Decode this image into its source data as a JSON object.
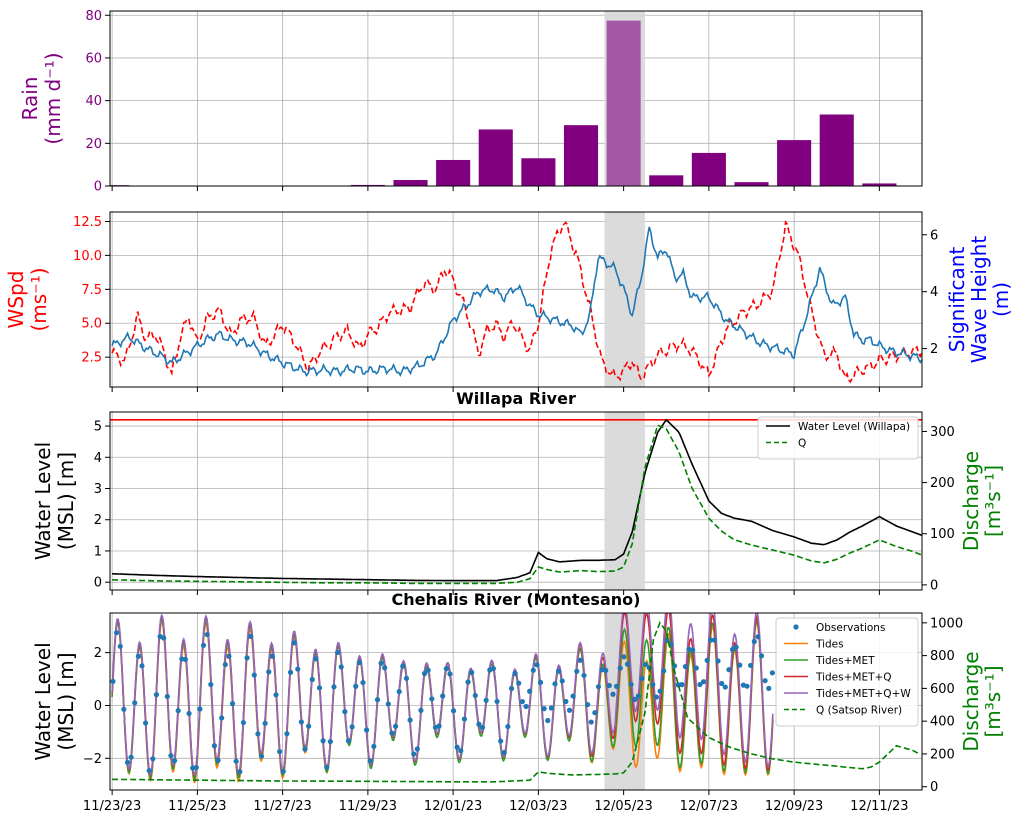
{
  "chart_data": [
    {
      "type": "bar",
      "ylabel_line1": "Rain",
      "ylabel_line2": "(mm d⁻¹)",
      "ylabel_color": "#800080",
      "tick_color": "#800080",
      "bar_color": "#800080",
      "ylim": [
        0,
        82
      ],
      "yticks": [
        0,
        20,
        40,
        60,
        80
      ],
      "x": [
        0,
        1,
        2,
        3,
        4,
        5,
        6,
        7,
        8,
        9,
        10,
        11,
        12,
        13,
        14,
        15,
        16,
        17,
        18
      ],
      "values": [
        0.4,
        0,
        0,
        0,
        0,
        0,
        0.5,
        2.8,
        12.2,
        26.5,
        13,
        28.5,
        77.5,
        5,
        15.5,
        1.8,
        21.5,
        33.5,
        1.2
      ],
      "grid": true
    },
    {
      "type": "line",
      "ylabel_line1": "WSpd",
      "ylabel_line2": "(ms⁻¹)",
      "ylabel_color": "#ff0000",
      "ylabel_right_line1": "Significant",
      "ylabel_right_line2": "Wave Height",
      "ylabel_right_line3": "(m)",
      "ylabel_right_color": "#0000ff",
      "ylim": [
        0.3,
        13.2
      ],
      "yticks": [
        2.5,
        5.0,
        7.5,
        10.0,
        12.5
      ],
      "ylim_right": [
        0.65,
        6.8
      ],
      "yticks_right": [
        2,
        4,
        6
      ],
      "grid": true,
      "series": [
        {
          "axis": "left",
          "color": "#ff0000",
          "dash": "dashed",
          "x": [
            0,
            0.3,
            0.6,
            0.8,
            1,
            1.2,
            1.4,
            1.6,
            1.8,
            2,
            2.2,
            2.5,
            2.8,
            3,
            3.3,
            3.6,
            4,
            4.3,
            4.6,
            4.9,
            5.2,
            5.5,
            5.8,
            6,
            6.2,
            6.5,
            6.8,
            7,
            7.3,
            7.6,
            7.8,
            8,
            8.3,
            8.6,
            8.8,
            9,
            9.2,
            9.4,
            9.6,
            9.8,
            10,
            10.3,
            10.6,
            10.9,
            11.2,
            11.5,
            11.8,
            12,
            12.2,
            12.4,
            12.6,
            12.8,
            13,
            13.3,
            13.6,
            14,
            14.4,
            14.8,
            15.2,
            15.5,
            15.8,
            16.1,
            16.4,
            16.7,
            17,
            17.2,
            17.4,
            17.6,
            17.8,
            18,
            18.3,
            18.6,
            19
          ],
          "values": [
            2.8,
            2.2,
            5.5,
            3.8,
            4.3,
            3,
            1.2,
            4,
            5.5,
            3.5,
            5.2,
            6,
            4,
            5.2,
            5.5,
            3.3,
            4.9,
            3.5,
            1.7,
            3,
            3.8,
            4.5,
            3.1,
            4.2,
            4.6,
            5.8,
            6,
            6.2,
            8,
            7.5,
            9,
            8.2,
            6,
            2.8,
            4.5,
            4.9,
            4,
            5.1,
            4,
            3,
            5,
            10.5,
            12.5,
            10,
            6.2,
            2,
            1,
            1.5,
            2.2,
            1,
            1.8,
            2.7,
            3,
            3.5,
            3,
            1.2,
            4.5,
            5.8,
            6.5,
            7.5,
            12.2,
            10,
            6,
            2.6,
            2.8,
            0.8,
            1.2,
            1.6,
            1.8,
            2.3,
            2.5,
            2.8,
            3
          ]
        },
        {
          "axis": "right",
          "color": "#1f77b4",
          "dash": "solid",
          "x": [
            0,
            0.4,
            0.8,
            1.2,
            1.4,
            1.8,
            2.2,
            2.5,
            2.8,
            3.2,
            3.6,
            4,
            4.5,
            5,
            5.3,
            5.7,
            6,
            6.4,
            6.8,
            7.2,
            7.6,
            8,
            8.3,
            8.6,
            8.9,
            9.2,
            9.5,
            9.8,
            10,
            10.4,
            10.8,
            11,
            11.2,
            11.4,
            11.6,
            11.8,
            12,
            12.2,
            12.4,
            12.6,
            12.8,
            13,
            13.2,
            13.4,
            13.6,
            14,
            14.4,
            14.8,
            15.2,
            15.6,
            16,
            16.3,
            16.6,
            16.9,
            17.2,
            17.4,
            17.6,
            17.8,
            18,
            18.3,
            18.6,
            19
          ],
          "values": [
            2.1,
            2.4,
            2,
            1.7,
            1.5,
            1.9,
            2.3,
            2.5,
            2.3,
            2.2,
            1.8,
            1.5,
            1.2,
            1.25,
            1.2,
            1.3,
            1.2,
            1.3,
            1.2,
            1.4,
            1.8,
            3,
            3.5,
            4,
            4.1,
            3.8,
            4.2,
            3.5,
            3.2,
            3,
            2.8,
            2.5,
            3.1,
            5.2,
            5,
            4.8,
            4.1,
            3.2,
            4.4,
            6.2,
            5.2,
            5.5,
            4.5,
            4.6,
            3.8,
            3.8,
            3,
            2.6,
            2.2,
            2.0,
            1.8,
            3.2,
            4.8,
            3.5,
            3.8,
            2.5,
            2.3,
            2.3,
            2.1,
            1.9,
            1.8,
            1.65
          ]
        }
      ]
    },
    {
      "type": "line",
      "title": "Willapa River",
      "ylabel_line1": "Water Level",
      "ylabel_line2": "(MSL) [m]",
      "ylabel_color": "#000000",
      "ylabel_right_line1": "Discharge",
      "ylabel_right_line2": "[m³s⁻¹]",
      "ylabel_right_color": "#008000",
      "ylim": [
        -0.25,
        5.45
      ],
      "yticks": [
        0,
        1,
        2,
        3,
        4,
        5
      ],
      "ylim_right": [
        -10,
        338
      ],
      "yticks_right": [
        0,
        100,
        200,
        300
      ],
      "threshold": 5.2,
      "threshold_color": "#ff0000",
      "grid": true,
      "legend": [
        "Water Level (Willapa)",
        "Q"
      ],
      "legend_position": "top-right",
      "series": [
        {
          "name": "Water Level (Willapa)",
          "axis": "left",
          "color": "#000000",
          "dash": "solid",
          "x": [
            0,
            1,
            2,
            3,
            4,
            5,
            6,
            7,
            8,
            9,
            9.5,
            9.8,
            10,
            10.2,
            10.5,
            11,
            11.4,
            11.8,
            12,
            12.2,
            12.5,
            12.8,
            13,
            13.3,
            13.6,
            14,
            14.3,
            14.6,
            15,
            15.5,
            16,
            16.4,
            16.7,
            17,
            17.3,
            17.6,
            18,
            18.4,
            18.8,
            19
          ],
          "values": [
            0.27,
            0.22,
            0.18,
            0.15,
            0.12,
            0.1,
            0.08,
            0.06,
            0.05,
            0.05,
            0.15,
            0.3,
            0.95,
            0.75,
            0.65,
            0.7,
            0.7,
            0.72,
            0.9,
            1.6,
            3.5,
            4.8,
            5.2,
            4.8,
            3.8,
            2.6,
            2.2,
            2.05,
            1.95,
            1.65,
            1.45,
            1.25,
            1.2,
            1.35,
            1.6,
            1.8,
            2.1,
            1.8,
            1.6,
            1.5
          ]
        },
        {
          "name": "Q",
          "axis": "right",
          "color": "#008000",
          "dash": "dashed",
          "x": [
            0,
            1,
            2,
            3,
            4,
            5,
            6,
            7,
            8,
            9,
            9.5,
            9.8,
            10,
            10.2,
            10.5,
            11,
            11.4,
            11.8,
            12,
            12.2,
            12.5,
            12.8,
            13,
            13.3,
            13.6,
            14,
            14.3,
            14.6,
            15,
            15.5,
            16,
            16.4,
            16.7,
            17,
            17.3,
            17.6,
            18,
            18.4,
            18.8,
            19
          ],
          "values": [
            10,
            8,
            7,
            6,
            5,
            4,
            4,
            3,
            3,
            3,
            5,
            12,
            35,
            30,
            25,
            28,
            26,
            27,
            35,
            80,
            230,
            312,
            305,
            260,
            190,
            130,
            105,
            88,
            78,
            68,
            58,
            47,
            43,
            50,
            62,
            72,
            88,
            75,
            65,
            58
          ]
        }
      ]
    },
    {
      "type": "line",
      "title": "Chehalis River (Montesano)",
      "ylabel_line1": "Water Level",
      "ylabel_line2": "(MSL) [m]",
      "ylabel_color": "#000000",
      "ylabel_right_line1": "Discharge",
      "ylabel_right_line2": "[m³s⁻¹]",
      "ylabel_right_color": "#008000",
      "ylim": [
        -3.2,
        3.5
      ],
      "yticks": [
        -2,
        0,
        2
      ],
      "ylim_right": [
        -20,
        1060
      ],
      "yticks_right": [
        0,
        200,
        400,
        600,
        800,
        1000
      ],
      "grid": true,
      "legend": [
        "Observations",
        "Tides",
        "Tides+MET",
        "Tides+MET+Q",
        "Tides+MET+Q+W",
        "Q (Satsop River)"
      ],
      "legend_position": "top-right",
      "model_end_x": 15.5,
      "tide_period": 0.517,
      "series": [
        {
          "name": "Observations",
          "color": "#1f77b4",
          "style": "dots"
        },
        {
          "name": "Tides",
          "color": "#ff7f0e",
          "style": "line"
        },
        {
          "name": "Tides+MET",
          "color": "#2ca02c",
          "style": "line"
        },
        {
          "name": "Tides+MET+Q",
          "color": "#d62728",
          "style": "line"
        },
        {
          "name": "Tides+MET+Q+W",
          "color": "#9467bd",
          "style": "line"
        },
        {
          "name": "Q (Satsop River)",
          "color": "#008000",
          "style": "dashed",
          "axis": "right",
          "x": [
            0,
            2,
            4,
            6,
            8,
            9,
            9.8,
            10,
            10.3,
            10.8,
            11.4,
            11.8,
            12,
            12.2,
            12.5,
            12.7,
            12.85,
            13,
            13.2,
            13.5,
            14,
            14.5,
            15,
            15.5,
            16,
            16.4,
            16.8,
            17,
            17.2,
            17.4,
            17.6,
            17.8,
            18,
            18.4,
            18.8,
            19
          ],
          "values": [
            45,
            40,
            35,
            33,
            30,
            30,
            40,
            90,
            80,
            72,
            75,
            78,
            85,
            150,
            450,
            900,
            1000,
            950,
            700,
            420,
            300,
            240,
            200,
            170,
            150,
            140,
            130,
            125,
            120,
            115,
            110,
            120,
            150,
            250,
            220,
            190
          ]
        }
      ]
    }
  ],
  "shared_x": {
    "xlim": [
      -0.05,
      19
    ],
    "ticks": [
      0,
      2,
      4,
      6,
      8,
      10,
      12,
      14,
      16,
      18
    ],
    "tick_labels": [
      "11/23/23",
      "11/25/23",
      "11/27/23",
      "11/29/23",
      "12/01/23",
      "12/03/23",
      "12/05/23",
      "12/07/23",
      "12/09/23",
      "12/11/23"
    ],
    "highlight": [
      11.55,
      12.5
    ],
    "highlight_color": "#d9d9d9"
  }
}
